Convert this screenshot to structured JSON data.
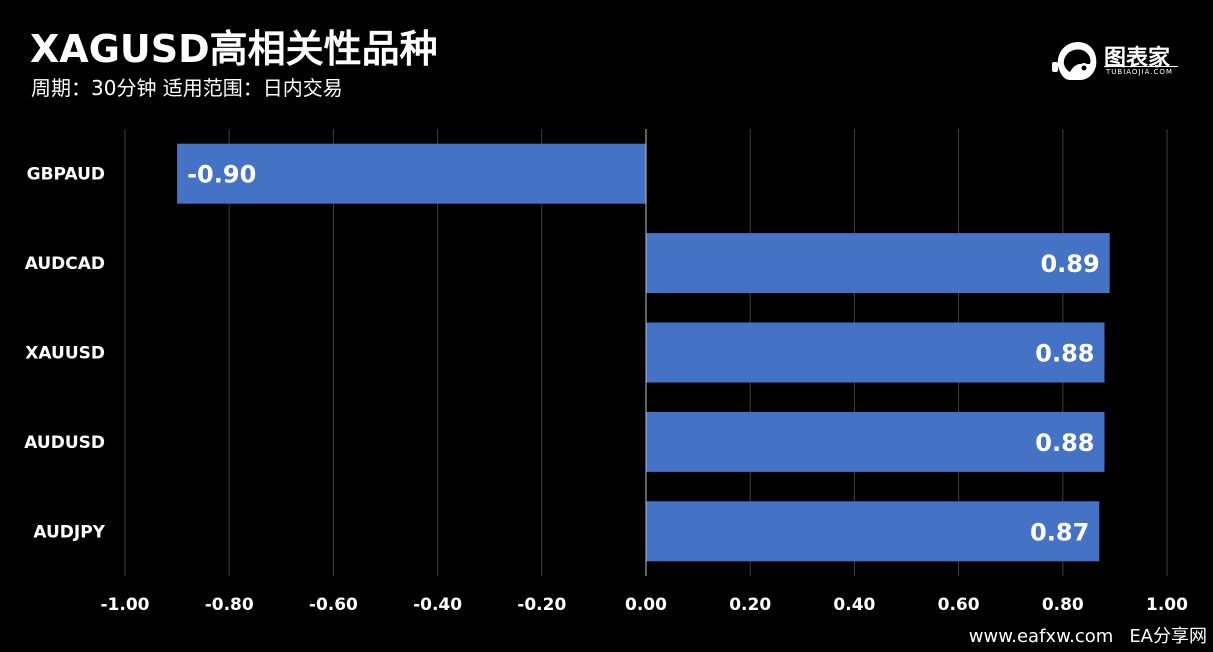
{
  "header": {
    "title": "XAGUSD高相关性品种",
    "subtitle": "周期：30分钟  适用范围：日内交易"
  },
  "logo": {
    "icon": "robot-head-icon",
    "name": "图表家",
    "sub": "TUBIAOJIA.COM"
  },
  "watermark": {
    "site": "www.eafxw.com",
    "name": "EA分享网"
  },
  "colors": {
    "background": "#000000",
    "bar": "#4472c4",
    "grid": "#404040",
    "text": "#ffffff"
  },
  "chart_data": {
    "type": "bar",
    "orientation": "horizontal",
    "categories": [
      "GBPAUD",
      "AUDCAD",
      "XAUUSD",
      "AUDUSD",
      "AUDJPY"
    ],
    "values": [
      -0.9,
      0.89,
      0.88,
      0.88,
      0.87
    ],
    "value_labels": [
      "-0.90",
      "0.89",
      "0.88",
      "0.88",
      "0.87"
    ],
    "xlim": [
      -1.0,
      1.0
    ],
    "xticks": [
      -1.0,
      -0.8,
      -0.6,
      -0.4,
      -0.2,
      0.0,
      0.2,
      0.4,
      0.6,
      0.8,
      1.0
    ],
    "xtick_labels": [
      "-1.00",
      "-0.80",
      "-0.60",
      "-0.40",
      "-0.20",
      "0.00",
      "0.20",
      "0.40",
      "0.60",
      "0.80",
      "1.00"
    ],
    "grid": true,
    "legend": "none"
  }
}
